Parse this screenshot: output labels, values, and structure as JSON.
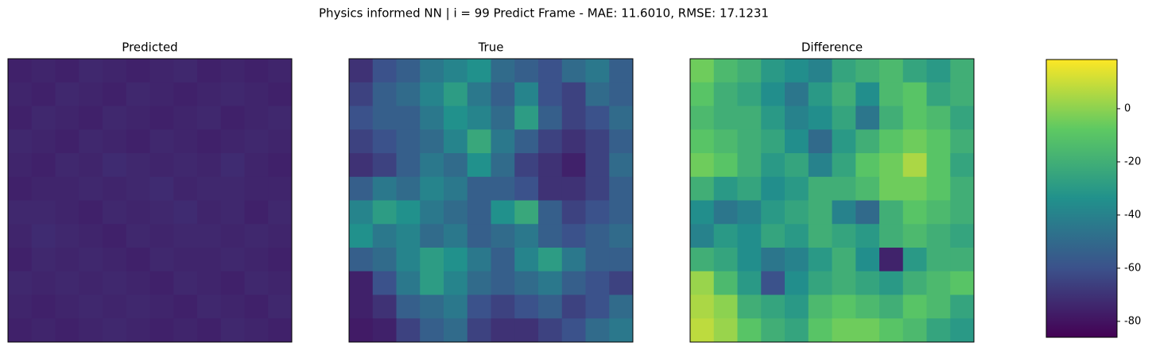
{
  "suptitle": "Physics informed NN | i = 99 Predict Frame - MAE: 11.6010, RMSE: 17.1231",
  "chart_data": [
    {
      "type": "heatmap",
      "title": "Predicted",
      "cmap": "viridis",
      "clim": [
        0,
        100
      ],
      "values": [
        [
          10,
          11,
          10,
          12,
          11,
          10,
          11,
          12,
          10,
          11,
          10,
          11
        ],
        [
          11,
          10,
          12,
          11,
          10,
          12,
          11,
          10,
          11,
          12,
          11,
          10
        ],
        [
          10,
          12,
          11,
          10,
          12,
          11,
          10,
          11,
          12,
          10,
          11,
          12
        ],
        [
          12,
          11,
          10,
          12,
          11,
          10,
          12,
          11,
          10,
          11,
          12,
          11
        ],
        [
          11,
          10,
          12,
          11,
          13,
          12,
          11,
          12,
          11,
          13,
          11,
          10
        ],
        [
          10,
          11,
          11,
          12,
          11,
          12,
          13,
          11,
          12,
          12,
          11,
          11
        ],
        [
          12,
          12,
          11,
          10,
          12,
          11,
          12,
          13,
          11,
          12,
          10,
          12
        ],
        [
          11,
          13,
          12,
          11,
          10,
          12,
          11,
          12,
          12,
          11,
          12,
          11
        ],
        [
          10,
          12,
          11,
          12,
          11,
          10,
          12,
          11,
          11,
          12,
          11,
          10
        ],
        [
          12,
          11,
          12,
          11,
          12,
          11,
          10,
          12,
          11,
          10,
          12,
          11
        ],
        [
          11,
          10,
          11,
          12,
          11,
          12,
          11,
          10,
          12,
          11,
          10,
          12
        ],
        [
          10,
          11,
          10,
          11,
          12,
          11,
          10,
          11,
          10,
          12,
          11,
          10
        ]
      ]
    },
    {
      "type": "heatmap",
      "title": "True",
      "cmap": "viridis",
      "clim": [
        0,
        100
      ],
      "values": [
        [
          15,
          25,
          30,
          40,
          45,
          50,
          35,
          30,
          25,
          35,
          40,
          30
        ],
        [
          20,
          30,
          35,
          45,
          55,
          40,
          30,
          45,
          25,
          20,
          35,
          30
        ],
        [
          25,
          30,
          30,
          40,
          50,
          45,
          35,
          55,
          30,
          20,
          25,
          35
        ],
        [
          20,
          25,
          30,
          35,
          45,
          60,
          40,
          30,
          20,
          15,
          20,
          30
        ],
        [
          15,
          20,
          30,
          40,
          35,
          50,
          35,
          20,
          15,
          10,
          20,
          35
        ],
        [
          30,
          40,
          35,
          45,
          40,
          30,
          30,
          25,
          15,
          15,
          20,
          30
        ],
        [
          45,
          55,
          50,
          40,
          35,
          30,
          50,
          60,
          30,
          20,
          25,
          30
        ],
        [
          50,
          40,
          45,
          35,
          40,
          30,
          35,
          40,
          30,
          25,
          30,
          35
        ],
        [
          30,
          35,
          45,
          55,
          50,
          40,
          30,
          45,
          55,
          40,
          30,
          30
        ],
        [
          10,
          25,
          40,
          55,
          45,
          35,
          30,
          35,
          40,
          30,
          25,
          20
        ],
        [
          10,
          15,
          30,
          35,
          40,
          25,
          20,
          25,
          30,
          20,
          25,
          35
        ],
        [
          8,
          10,
          20,
          30,
          35,
          20,
          15,
          15,
          20,
          25,
          35,
          40
        ]
      ]
    },
    {
      "type": "heatmap",
      "title": "Difference",
      "cmap": "viridis",
      "values": [
        [
          -5,
          -15,
          -20,
          -30,
          -35,
          -40,
          -25,
          -20,
          -15,
          -25,
          -30,
          -20
        ],
        [
          -10,
          -20,
          -25,
          -35,
          -45,
          -30,
          -20,
          -35,
          -15,
          -10,
          -25,
          -20
        ],
        [
          -15,
          -20,
          -20,
          -30,
          -40,
          -35,
          -25,
          -45,
          -20,
          -10,
          -15,
          -25
        ],
        [
          -10,
          -15,
          -20,
          -25,
          -35,
          -50,
          -30,
          -20,
          -10,
          -5,
          -10,
          -20
        ],
        [
          -5,
          -10,
          -20,
          -30,
          -25,
          -40,
          -25,
          -10,
          -5,
          5,
          -10,
          -25
        ],
        [
          -20,
          -30,
          -25,
          -35,
          -30,
          -20,
          -20,
          -15,
          -5,
          -5,
          -10,
          -20
        ],
        [
          -35,
          -45,
          -40,
          -30,
          -25,
          -20,
          -40,
          -50,
          -20,
          -10,
          -15,
          -20
        ],
        [
          -40,
          -30,
          -35,
          -25,
          -30,
          -20,
          -25,
          -30,
          -20,
          -15,
          -20,
          -25
        ],
        [
          -20,
          -25,
          -35,
          -45,
          -40,
          -30,
          -20,
          -35,
          -75,
          -30,
          -20,
          -20
        ],
        [
          2,
          -15,
          -30,
          -60,
          -35,
          -25,
          -20,
          -25,
          -30,
          -20,
          -15,
          -10
        ],
        [
          5,
          0,
          -20,
          -25,
          -30,
          -15,
          -10,
          -15,
          -20,
          -10,
          -15,
          -25
        ],
        [
          8,
          2,
          -10,
          -20,
          -25,
          -10,
          -5,
          -5,
          -10,
          -15,
          -25,
          -30
        ]
      ],
      "colorbar": {
        "ylim": [
          -86,
          18.5
        ],
        "yticks": [
          0,
          -20,
          -40,
          -60,
          -80
        ]
      }
    }
  ]
}
